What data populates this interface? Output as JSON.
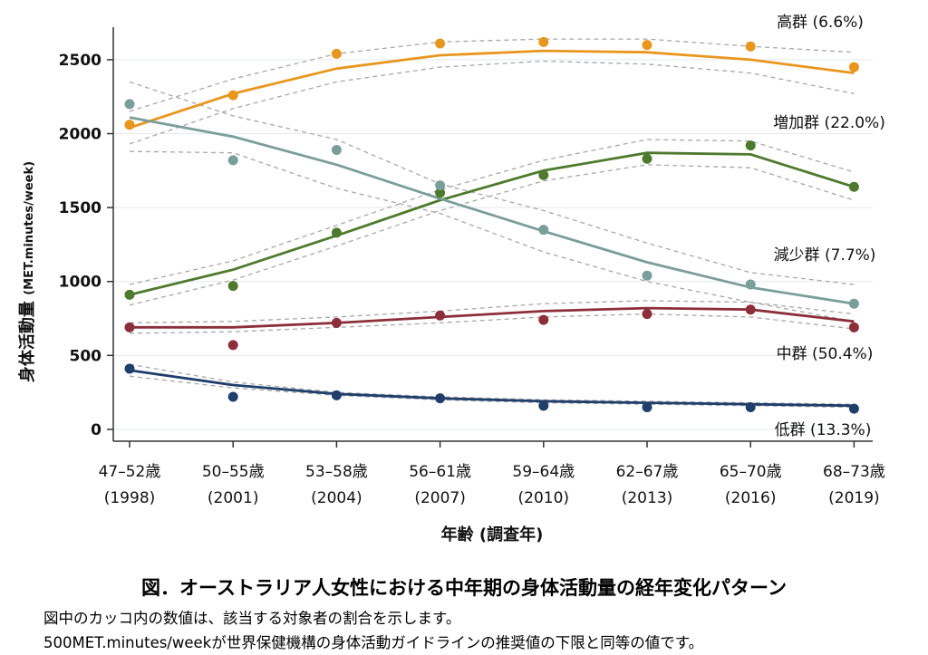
{
  "chart_data": {
    "type": "line",
    "ylabel": "身体活動量",
    "ylabel_unit": "(MET.minutes/week)",
    "xlabel": "年齢 (調査年)",
    "categories": [
      [
        "47–52歳",
        "(1998)"
      ],
      [
        "50–55歳",
        "(2001)"
      ],
      [
        "53–58歳",
        "(2004)"
      ],
      [
        "56–61歳",
        "(2007)"
      ],
      [
        "59–64歳",
        "(2010)"
      ],
      [
        "62–67歳",
        "(2013)"
      ],
      [
        "65–70歳",
        "(2016)"
      ],
      [
        "68–73歳",
        "(2019)"
      ]
    ],
    "yticks": [
      0,
      500,
      1000,
      1500,
      2000,
      2500
    ],
    "ylim": [
      -80,
      2720
    ],
    "grid": true,
    "series": [
      {
        "name": "高群 (6.6%)",
        "color": "#E8961E",
        "observed": [
          2060,
          2260,
          2540,
          2610,
          2620,
          2600,
          2590,
          2450
        ],
        "fitted": [
          2040,
          2270,
          2440,
          2530,
          2560,
          2550,
          2500,
          2410
        ],
        "ci_upper": [
          2150,
          2370,
          2540,
          2620,
          2640,
          2640,
          2590,
          2550
        ],
        "ci_lower": [
          1930,
          2170,
          2350,
          2450,
          2490,
          2470,
          2410,
          2270
        ]
      },
      {
        "name": "増加群 (22.0%)",
        "color": "#4E7A2E",
        "observed": [
          910,
          970,
          1330,
          1600,
          1720,
          1830,
          1920,
          1640
        ],
        "fitted": [
          910,
          1080,
          1310,
          1550,
          1750,
          1870,
          1860,
          1640
        ],
        "ci_upper": [
          980,
          1140,
          1380,
          1620,
          1820,
          1960,
          1950,
          1740
        ],
        "ci_lower": [
          840,
          1010,
          1240,
          1480,
          1680,
          1790,
          1770,
          1550
        ]
      },
      {
        "name": "減少群 (7.7%)",
        "color": "#7A9E9A",
        "observed": [
          2200,
          1820,
          1890,
          1650,
          1350,
          1040,
          980,
          850
        ],
        "fitted": [
          2110,
          1980,
          1790,
          1560,
          1340,
          1130,
          960,
          850
        ],
        "ci_upper": [
          2350,
          2120,
          1960,
          1660,
          1480,
          1260,
          1060,
          980
        ],
        "ci_lower": [
          1880,
          1870,
          1630,
          1460,
          1200,
          1000,
          860,
          730
        ]
      },
      {
        "name": "中群 (50.4%)",
        "color": "#8C2F3A",
        "observed": [
          690,
          570,
          720,
          770,
          740,
          780,
          810,
          690
        ],
        "fitted": [
          690,
          690,
          720,
          760,
          800,
          820,
          810,
          730
        ],
        "ci_upper": [
          720,
          730,
          760,
          800,
          850,
          870,
          860,
          780
        ],
        "ci_lower": [
          650,
          660,
          690,
          720,
          760,
          780,
          760,
          680
        ]
      },
      {
        "name": "低群 (13.3%)",
        "color": "#1F3E6B",
        "observed": [
          410,
          220,
          230,
          210,
          160,
          150,
          150,
          140
        ],
        "fitted": [
          400,
          300,
          240,
          210,
          190,
          180,
          170,
          160
        ],
        "ci_upper": [
          440,
          320,
          250,
          220,
          200,
          190,
          180,
          170
        ],
        "ci_lower": [
          360,
          280,
          230,
          200,
          180,
          170,
          160,
          150
        ]
      }
    ]
  },
  "caption": {
    "title": "図．オーストラリア人女性における中年期の身体活動量の経年変化パターン",
    "note1": "図中のカッコ内の数値は、該当する対象者の割合を示します。",
    "note2": "500MET.minutes/weekが世界保健機構の身体活動ガイドラインの推奨値の下限と同等の値です。"
  }
}
